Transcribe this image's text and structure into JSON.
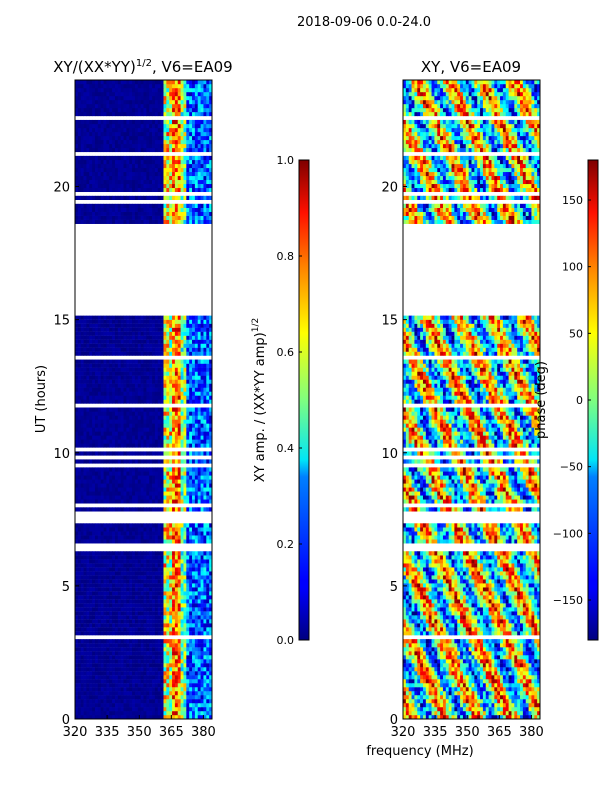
{
  "figure": {
    "suptitle": "2018-09-06 0.0-24.0",
    "xlabel": "frequency (MHz)",
    "ylabel": "UT (hours)"
  },
  "chart_data": [
    {
      "type": "heatmap",
      "title": "XY/(XX*YY)",
      "title_sup": "1/2",
      "title_suffix": ", V6=EA09",
      "xlim": [
        320,
        384
      ],
      "ylim": [
        0,
        24
      ],
      "xticks": [
        320,
        335,
        350,
        365,
        380
      ],
      "yticks": [
        0,
        5,
        10,
        15,
        20
      ],
      "colorbar": {
        "label": "XY amp. / (XX*YY amp)",
        "label_sup": "1/2",
        "range": [
          0.0,
          1.0
        ],
        "ticks": [
          "0.0",
          "0.2",
          "0.4",
          "0.6",
          "0.8",
          "1.0"
        ],
        "tick_values": [
          0.0,
          0.2,
          0.4,
          0.6,
          0.8,
          1.0
        ]
      }
    },
    {
      "type": "heatmap",
      "title": "XY, V6=EA09",
      "xlim": [
        320,
        384
      ],
      "ylim": [
        0,
        24
      ],
      "xticks": [
        320,
        335,
        350,
        365,
        380
      ],
      "yticks": [
        0,
        5,
        10,
        15,
        20
      ],
      "colorbar": {
        "label": "phase (deg)",
        "range": [
          -180,
          180
        ],
        "ticks": [
          "−150",
          "−100",
          "−50",
          "0",
          "50",
          "100",
          "150"
        ],
        "tick_values": [
          -150,
          -100,
          -50,
          0,
          50,
          100,
          150
        ]
      }
    }
  ],
  "colors": {
    "jet_low": "#00007f",
    "jet_mid": "#7fff7f",
    "jet_high": "#7f0000"
  }
}
